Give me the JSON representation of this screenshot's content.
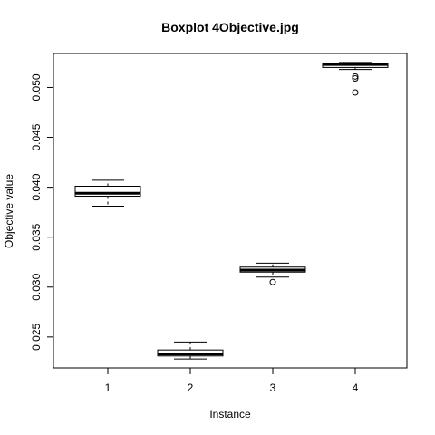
{
  "chart_data": {
    "type": "boxplot",
    "title": "Boxplot 4Objective.jpg",
    "xlabel": "Instance",
    "ylabel": "Objective value",
    "categories": [
      "1",
      "2",
      "3",
      "4"
    ],
    "ylim": [
      0.0219,
      0.0534
    ],
    "yticks": [
      0.025,
      0.03,
      0.035,
      0.04,
      0.045,
      0.05
    ],
    "ytick_labels": [
      "0.025",
      "0.030",
      "0.035",
      "0.040",
      "0.045",
      "0.050"
    ],
    "boxes": [
      {
        "category": "1",
        "whisker_low": 0.0381,
        "q1": 0.0391,
        "median": 0.0394,
        "q3": 0.0401,
        "whisker_high": 0.0407,
        "outliers": []
      },
      {
        "category": "2",
        "whisker_low": 0.0228,
        "q1": 0.0231,
        "median": 0.0233,
        "q3": 0.0237,
        "whisker_high": 0.0245,
        "outliers": []
      },
      {
        "category": "3",
        "whisker_low": 0.031,
        "q1": 0.0315,
        "median": 0.0317,
        "q3": 0.032,
        "whisker_high": 0.0324,
        "outliers": [
          0.0305
        ]
      },
      {
        "category": "4",
        "whisker_low": 0.0518,
        "q1": 0.052,
        "median": 0.0523,
        "q3": 0.0524,
        "whisker_high": 0.0525,
        "outliers": [
          0.0509,
          0.0511,
          0.0495
        ]
      }
    ],
    "grid": false,
    "legend": "none"
  }
}
